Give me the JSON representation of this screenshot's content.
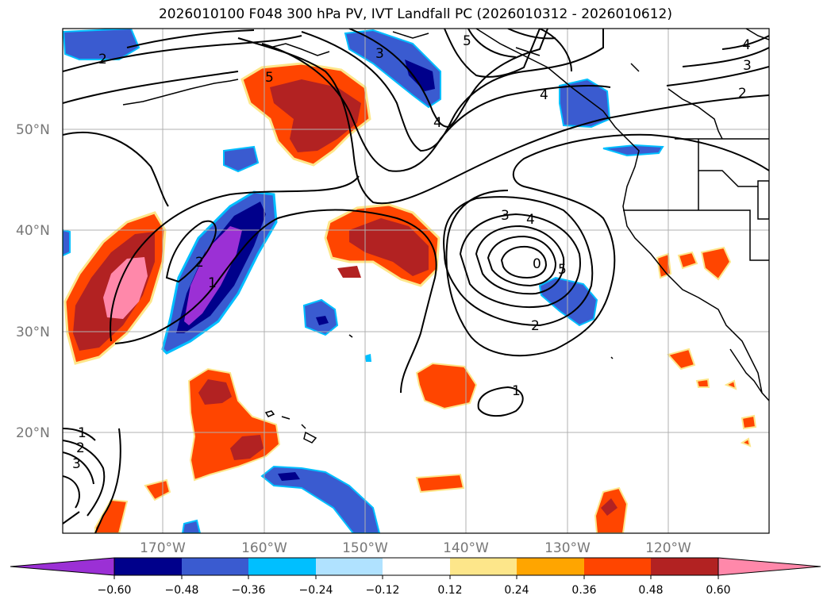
{
  "title": "2026010100 F048 300 hPa PV, IVT Landfall PC (2026010312 - 2026010612)",
  "map": {
    "lat_labels": [
      "50°N",
      "40°N",
      "30°N",
      "20°N"
    ],
    "lon_labels": [
      "170°W",
      "160°W",
      "150°W",
      "140°W",
      "130°W",
      "120°W"
    ],
    "contour_labels": [
      "2",
      "5",
      "3",
      "5",
      "4",
      "4",
      "3",
      "2",
      "4",
      "3",
      "4",
      "0",
      "5",
      "2",
      "1",
      "2",
      "1",
      "1",
      "2",
      "3"
    ]
  },
  "colorbar": {
    "ticks": [
      "−0.60",
      "−0.48",
      "−0.36",
      "−0.24",
      "−0.12",
      "0.12",
      "0.24",
      "0.36",
      "0.48",
      "0.60"
    ],
    "colors": [
      "#9b30d5",
      "#00008b",
      "#3a5bd0",
      "#00bfff",
      "#b0e2ff",
      "#ffffff",
      "#fde68a",
      "#ffa500",
      "#ff4500",
      "#b22222",
      "#ff88aa"
    ]
  }
}
